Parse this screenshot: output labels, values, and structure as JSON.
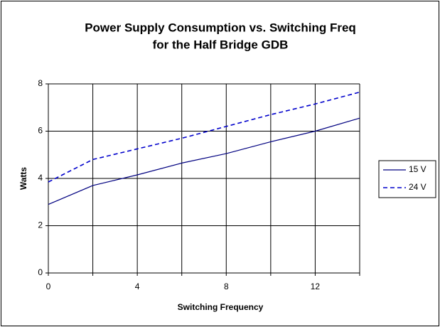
{
  "chart_data": {
    "type": "line",
    "title": [
      "Power Supply Consumption vs. Switching Freq",
      "for the Half Bridge GDB"
    ],
    "xlabel": "Switching Frequency",
    "ylabel": "Watts",
    "x": [
      0,
      2,
      4,
      6,
      8,
      10,
      12,
      14
    ],
    "series": [
      {
        "name": "15 V",
        "color": "#000080",
        "dash": false,
        "values": [
          2.9,
          3.7,
          4.15,
          4.65,
          5.05,
          5.55,
          6.0,
          6.55
        ]
      },
      {
        "name": "24 V",
        "color": "#0000cc",
        "dash": true,
        "values": [
          3.85,
          4.8,
          5.25,
          5.7,
          6.2,
          6.7,
          7.15,
          7.65
        ]
      }
    ],
    "xlim": [
      0,
      14
    ],
    "ylim": [
      0,
      8
    ],
    "xticks": [
      0,
      4,
      8,
      12
    ],
    "xminorticks": [
      2,
      6,
      10,
      14
    ],
    "yticks": [
      0,
      2,
      4,
      6,
      8
    ],
    "grid": true,
    "legend": "right"
  }
}
